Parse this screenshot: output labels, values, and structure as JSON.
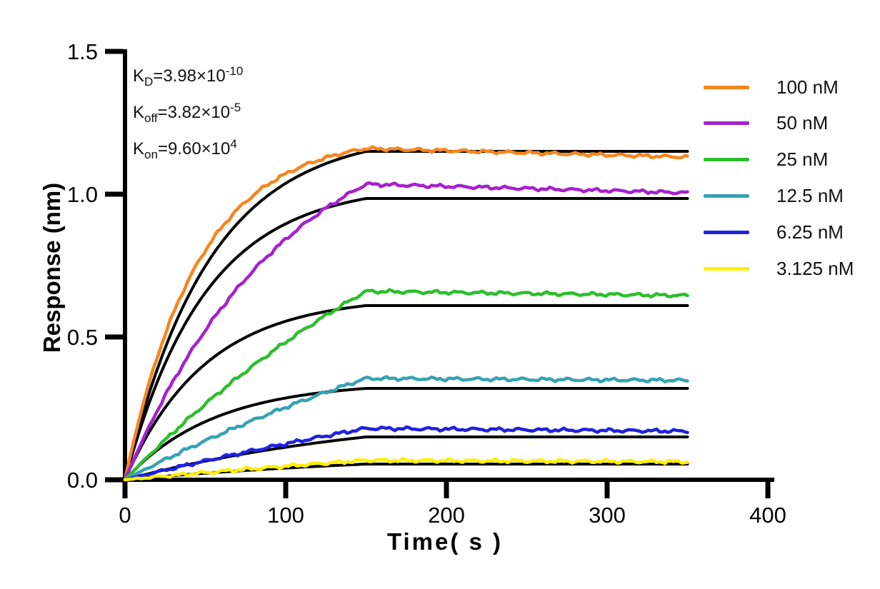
{
  "figure_title": "",
  "kinetics": {
    "lines": [
      {
        "id": "KD",
        "base": "K",
        "sub": "D",
        "rhs": "=3.98×10",
        "sup": "-10"
      },
      {
        "id": "Koff",
        "base": "K",
        "sub": "off",
        "rhs": "=3.82×10",
        "sup": "-5"
      },
      {
        "id": "Kon",
        "base": "K",
        "sub": "on",
        "rhs": "=9.60×10",
        "sup": "4"
      }
    ]
  },
  "chart_data": {
    "type": "line",
    "title": "",
    "xlabel": "Time( s )",
    "ylabel": "Response (nm)",
    "xlim": [
      0,
      400
    ],
    "ylim": [
      0,
      1.5
    ],
    "x_ticks": {
      "values": [
        0,
        100,
        200,
        300,
        400
      ],
      "labels": [
        "0",
        "100",
        "200",
        "300",
        "400"
      ]
    },
    "y_ticks": {
      "values": [
        0,
        0.5,
        1.0,
        1.5
      ],
      "labels": [
        "0.0",
        "0.5",
        "1.0",
        "1.5"
      ]
    },
    "grid": false,
    "legend_position": "right",
    "association_end_s": 150,
    "trace_end_s": 350,
    "fit_color": "#000000",
    "t_samples": [
      0,
      25,
      50,
      75,
      100,
      125,
      150,
      175,
      200,
      225,
      250,
      275,
      300,
      325,
      350
    ],
    "series": [
      {
        "label": "100 nM",
        "color": "#F5861F",
        "data_peak": 1.16,
        "data_end": 1.13,
        "data_k": 0.022,
        "fit_plateau": 1.15,
        "fit_k": 0.019,
        "response": [
          0,
          0.51,
          0.8,
          0.97,
          1.07,
          1.13,
          1.16,
          1.16,
          1.15,
          1.15,
          1.15,
          1.14,
          1.14,
          1.13,
          1.13
        ],
        "fit": [
          0,
          0.46,
          0.75,
          0.93,
          1.04,
          1.11,
          1.15,
          1.15,
          1.15,
          1.15,
          1.15,
          1.15,
          1.15,
          1.15,
          1.15
        ]
      },
      {
        "label": "50 nM",
        "color": "#A621CE",
        "data_peak": 1.035,
        "data_end": 1.005,
        "data_k": 0.01,
        "fit_plateau": 0.985,
        "fit_k": 0.02,
        "response": [
          0,
          0.3,
          0.52,
          0.7,
          0.84,
          0.95,
          1.04,
          1.03,
          1.03,
          1.02,
          1.02,
          1.02,
          1.01,
          1.01,
          1.0
        ],
        "fit": [
          0,
          0.41,
          0.66,
          0.81,
          0.9,
          0.95,
          0.99,
          0.99,
          0.99,
          0.99,
          0.99,
          0.99,
          0.99,
          0.99,
          0.99
        ]
      },
      {
        "label": "25 nM",
        "color": "#2DBE2D",
        "data_peak": 0.66,
        "data_end": 0.645,
        "data_k": 0.004,
        "fit_plateau": 0.61,
        "fit_k": 0.02,
        "response": [
          0,
          0.14,
          0.27,
          0.38,
          0.48,
          0.58,
          0.66,
          0.66,
          0.66,
          0.65,
          0.65,
          0.65,
          0.65,
          0.65,
          0.65
        ],
        "fit": [
          0,
          0.25,
          0.41,
          0.5,
          0.56,
          0.59,
          0.61,
          0.61,
          0.61,
          0.61,
          0.61,
          0.61,
          0.61,
          0.61,
          0.61
        ]
      },
      {
        "label": "12.5 nM",
        "color": "#36A2B4",
        "data_peak": 0.355,
        "data_end": 0.348,
        "data_k": 0.003,
        "fit_plateau": 0.32,
        "fit_k": 0.018,
        "response": [
          0,
          0.07,
          0.14,
          0.2,
          0.25,
          0.31,
          0.36,
          0.35,
          0.35,
          0.35,
          0.35,
          0.35,
          0.35,
          0.35,
          0.35
        ],
        "fit": [
          0,
          0.12,
          0.2,
          0.25,
          0.29,
          0.31,
          0.32,
          0.32,
          0.32,
          0.32,
          0.32,
          0.32,
          0.32,
          0.32,
          0.32
        ]
      },
      {
        "label": "6.25 nM",
        "color": "#1E22DE",
        "data_peak": 0.18,
        "data_end": 0.17,
        "data_k": 0.002,
        "fit_plateau": 0.15,
        "fit_k": 0.006,
        "response": [
          0,
          0.03,
          0.07,
          0.1,
          0.13,
          0.15,
          0.18,
          0.18,
          0.18,
          0.18,
          0.17,
          0.17,
          0.17,
          0.17,
          0.17
        ],
        "fit": [
          0,
          0.04,
          0.07,
          0.09,
          0.11,
          0.13,
          0.15,
          0.15,
          0.15,
          0.15,
          0.15,
          0.15,
          0.15,
          0.15,
          0.15
        ]
      },
      {
        "label": "3.125 nM",
        "color": "#FFEF00",
        "data_peak": 0.068,
        "data_end": 0.063,
        "data_k": 0.002,
        "fit_plateau": 0.055,
        "fit_k": 0.005,
        "response": [
          0,
          0.01,
          0.03,
          0.04,
          0.05,
          0.06,
          0.07,
          0.07,
          0.07,
          0.07,
          0.07,
          0.06,
          0.06,
          0.06,
          0.06
        ],
        "fit": [
          0,
          0.01,
          0.02,
          0.03,
          0.04,
          0.05,
          0.06,
          0.06,
          0.06,
          0.06,
          0.06,
          0.06,
          0.06,
          0.06,
          0.06
        ]
      }
    ]
  }
}
